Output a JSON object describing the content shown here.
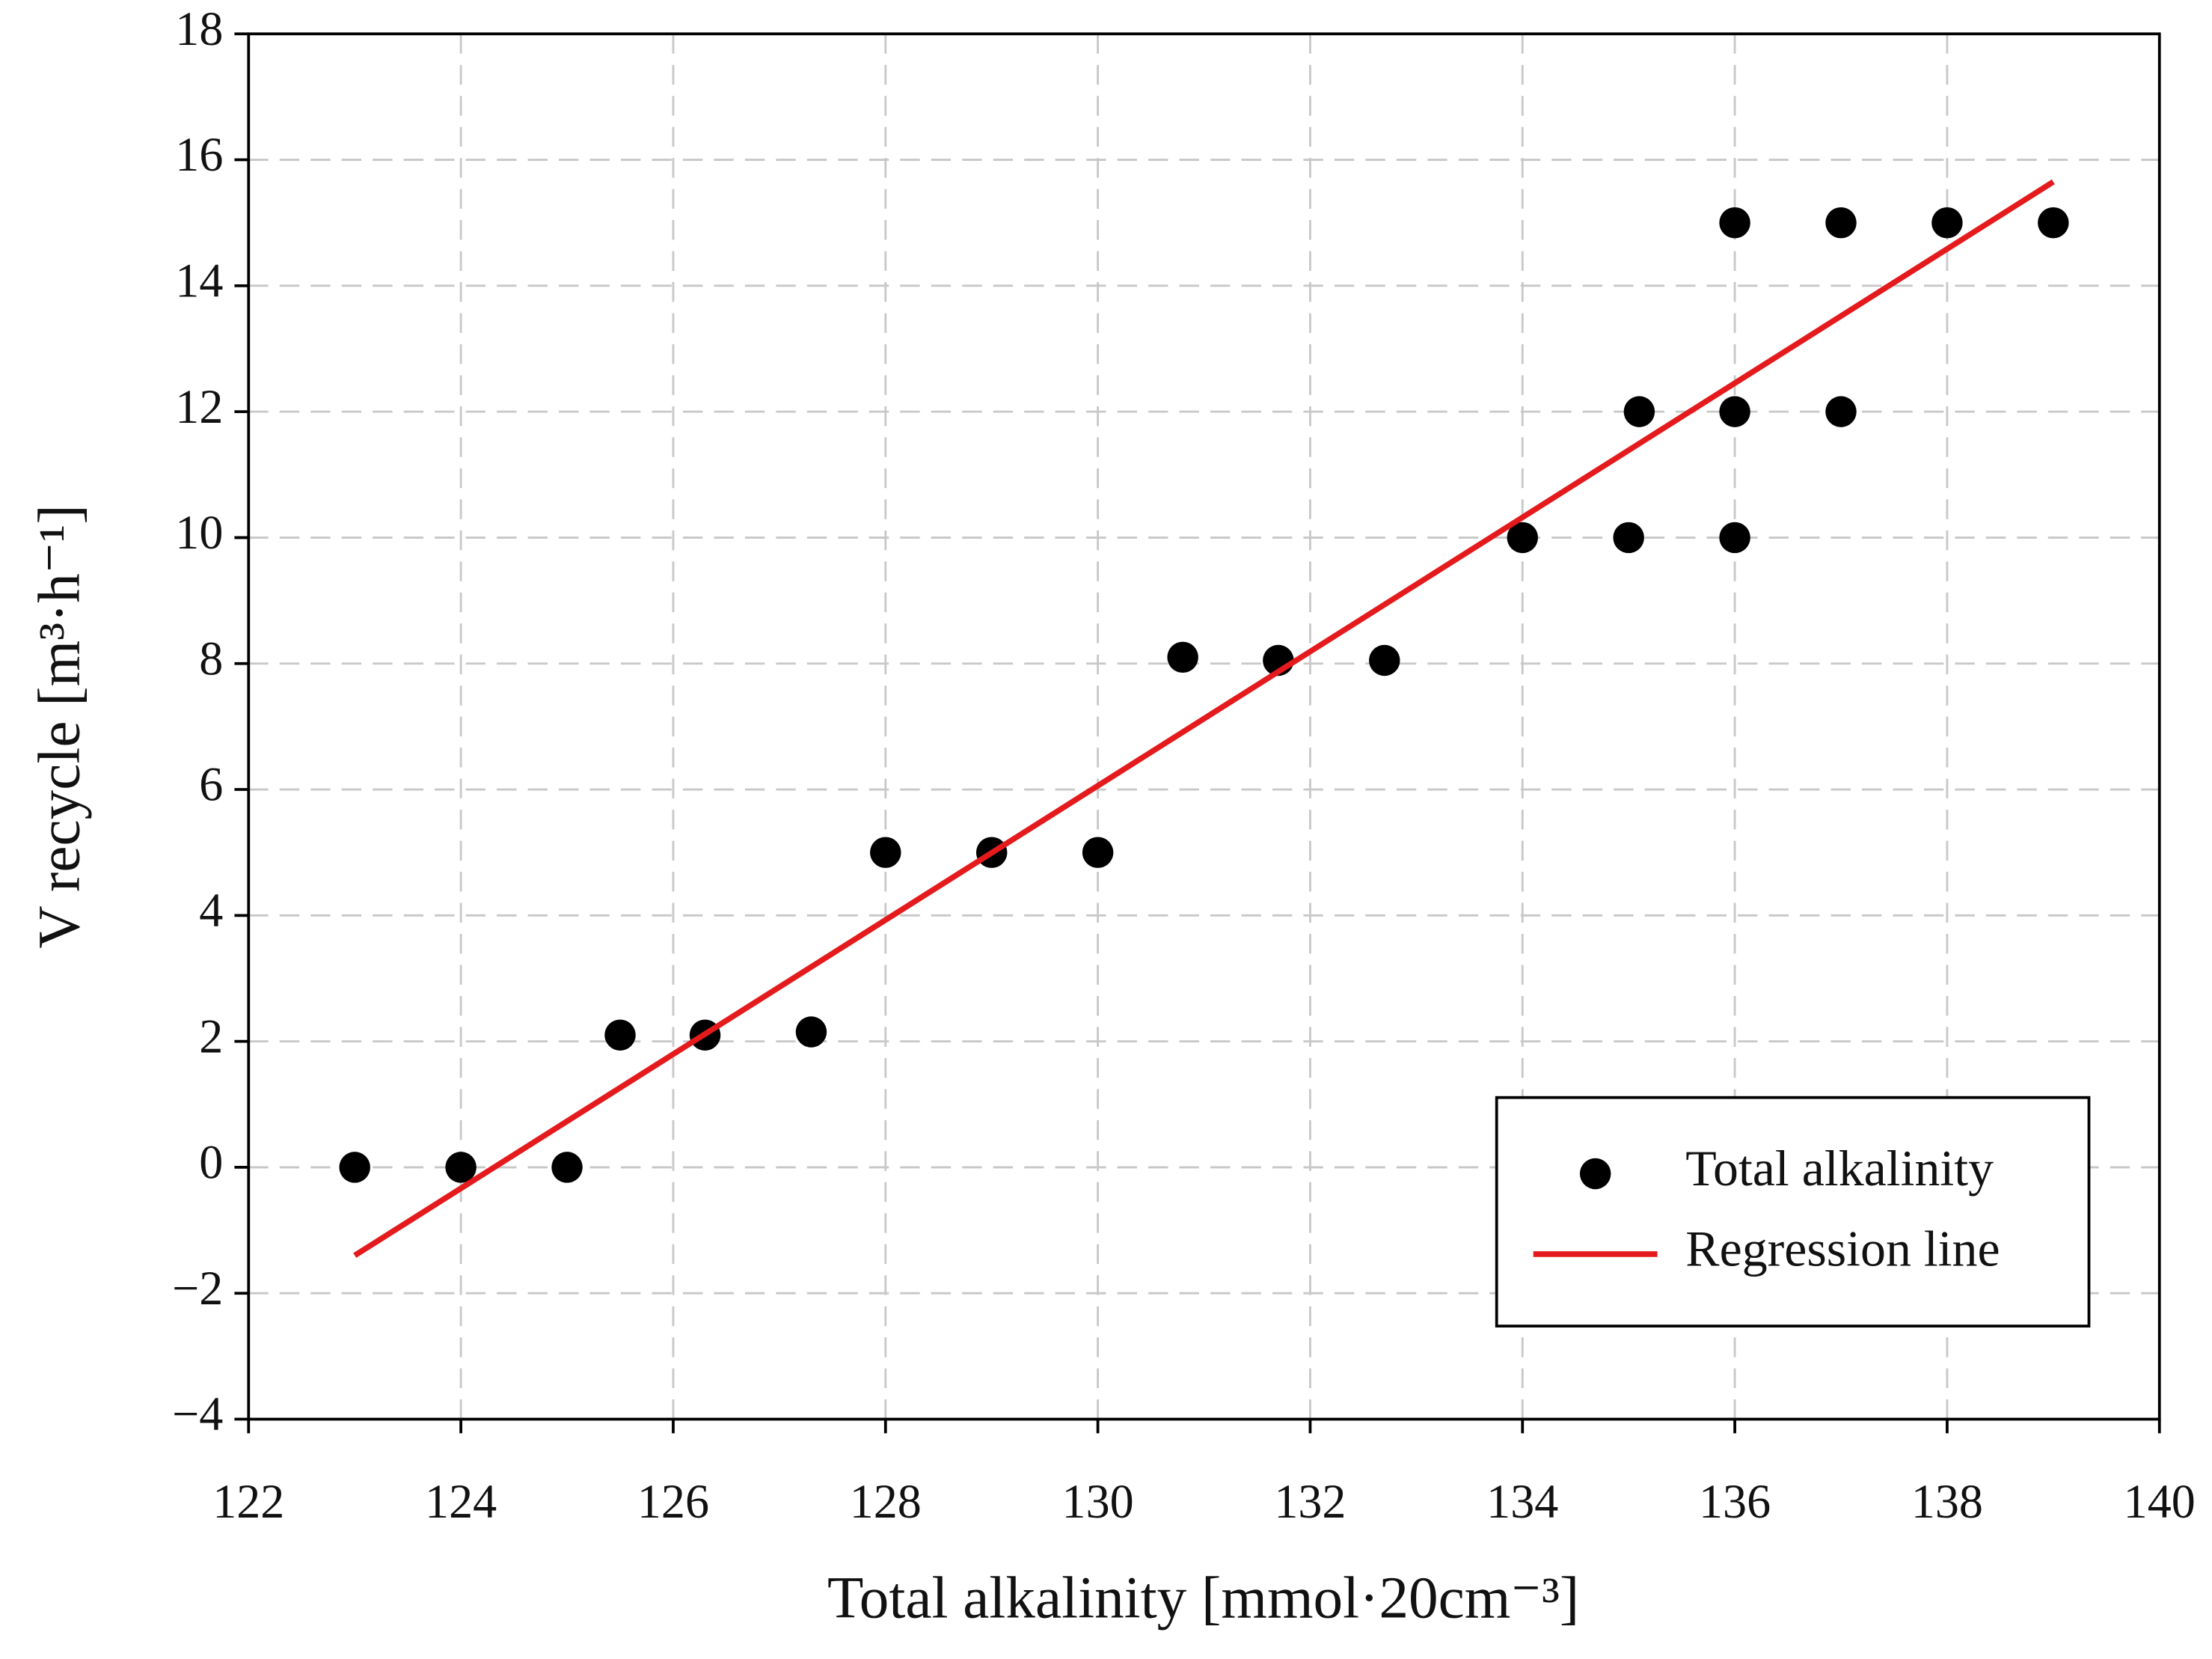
{
  "chart_data": {
    "type": "scatter",
    "xlabel": "Total alkalinity [mmol·20cm⁻³]",
    "ylabel": "V recycle [m³·h⁻¹]",
    "xlim": [
      122,
      140
    ],
    "ylim": [
      -4,
      18
    ],
    "xticks": [
      122,
      124,
      126,
      128,
      130,
      132,
      134,
      136,
      138,
      140
    ],
    "yticks": [
      {
        "value": -4,
        "label": "−4"
      },
      {
        "value": -2,
        "label": "−2"
      },
      0,
      2,
      4,
      6,
      8,
      10,
      12,
      14,
      16,
      18
    ],
    "grid": true,
    "legend": "lower right",
    "series": [
      {
        "name": "Total alkalinity",
        "color": "#000000",
        "x": [
          123,
          124,
          125,
          125.5,
          126.3,
          127.3,
          128,
          129,
          130,
          130.8,
          131.7,
          132.7,
          134,
          135,
          135.1,
          136,
          136,
          136,
          137,
          137,
          138,
          139
        ],
        "values": [
          0,
          0,
          0,
          2.1,
          2.1,
          2.15,
          5,
          5,
          5,
          8.1,
          8.05,
          8.05,
          10,
          10,
          12,
          15,
          12,
          10,
          15,
          12,
          15,
          15
        ]
      },
      {
        "name": "Regression line",
        "color": "#e41a1c",
        "type": "line",
        "x": [
          123,
          139
        ],
        "values": [
          -1.4,
          15.65
        ]
      }
    ]
  }
}
